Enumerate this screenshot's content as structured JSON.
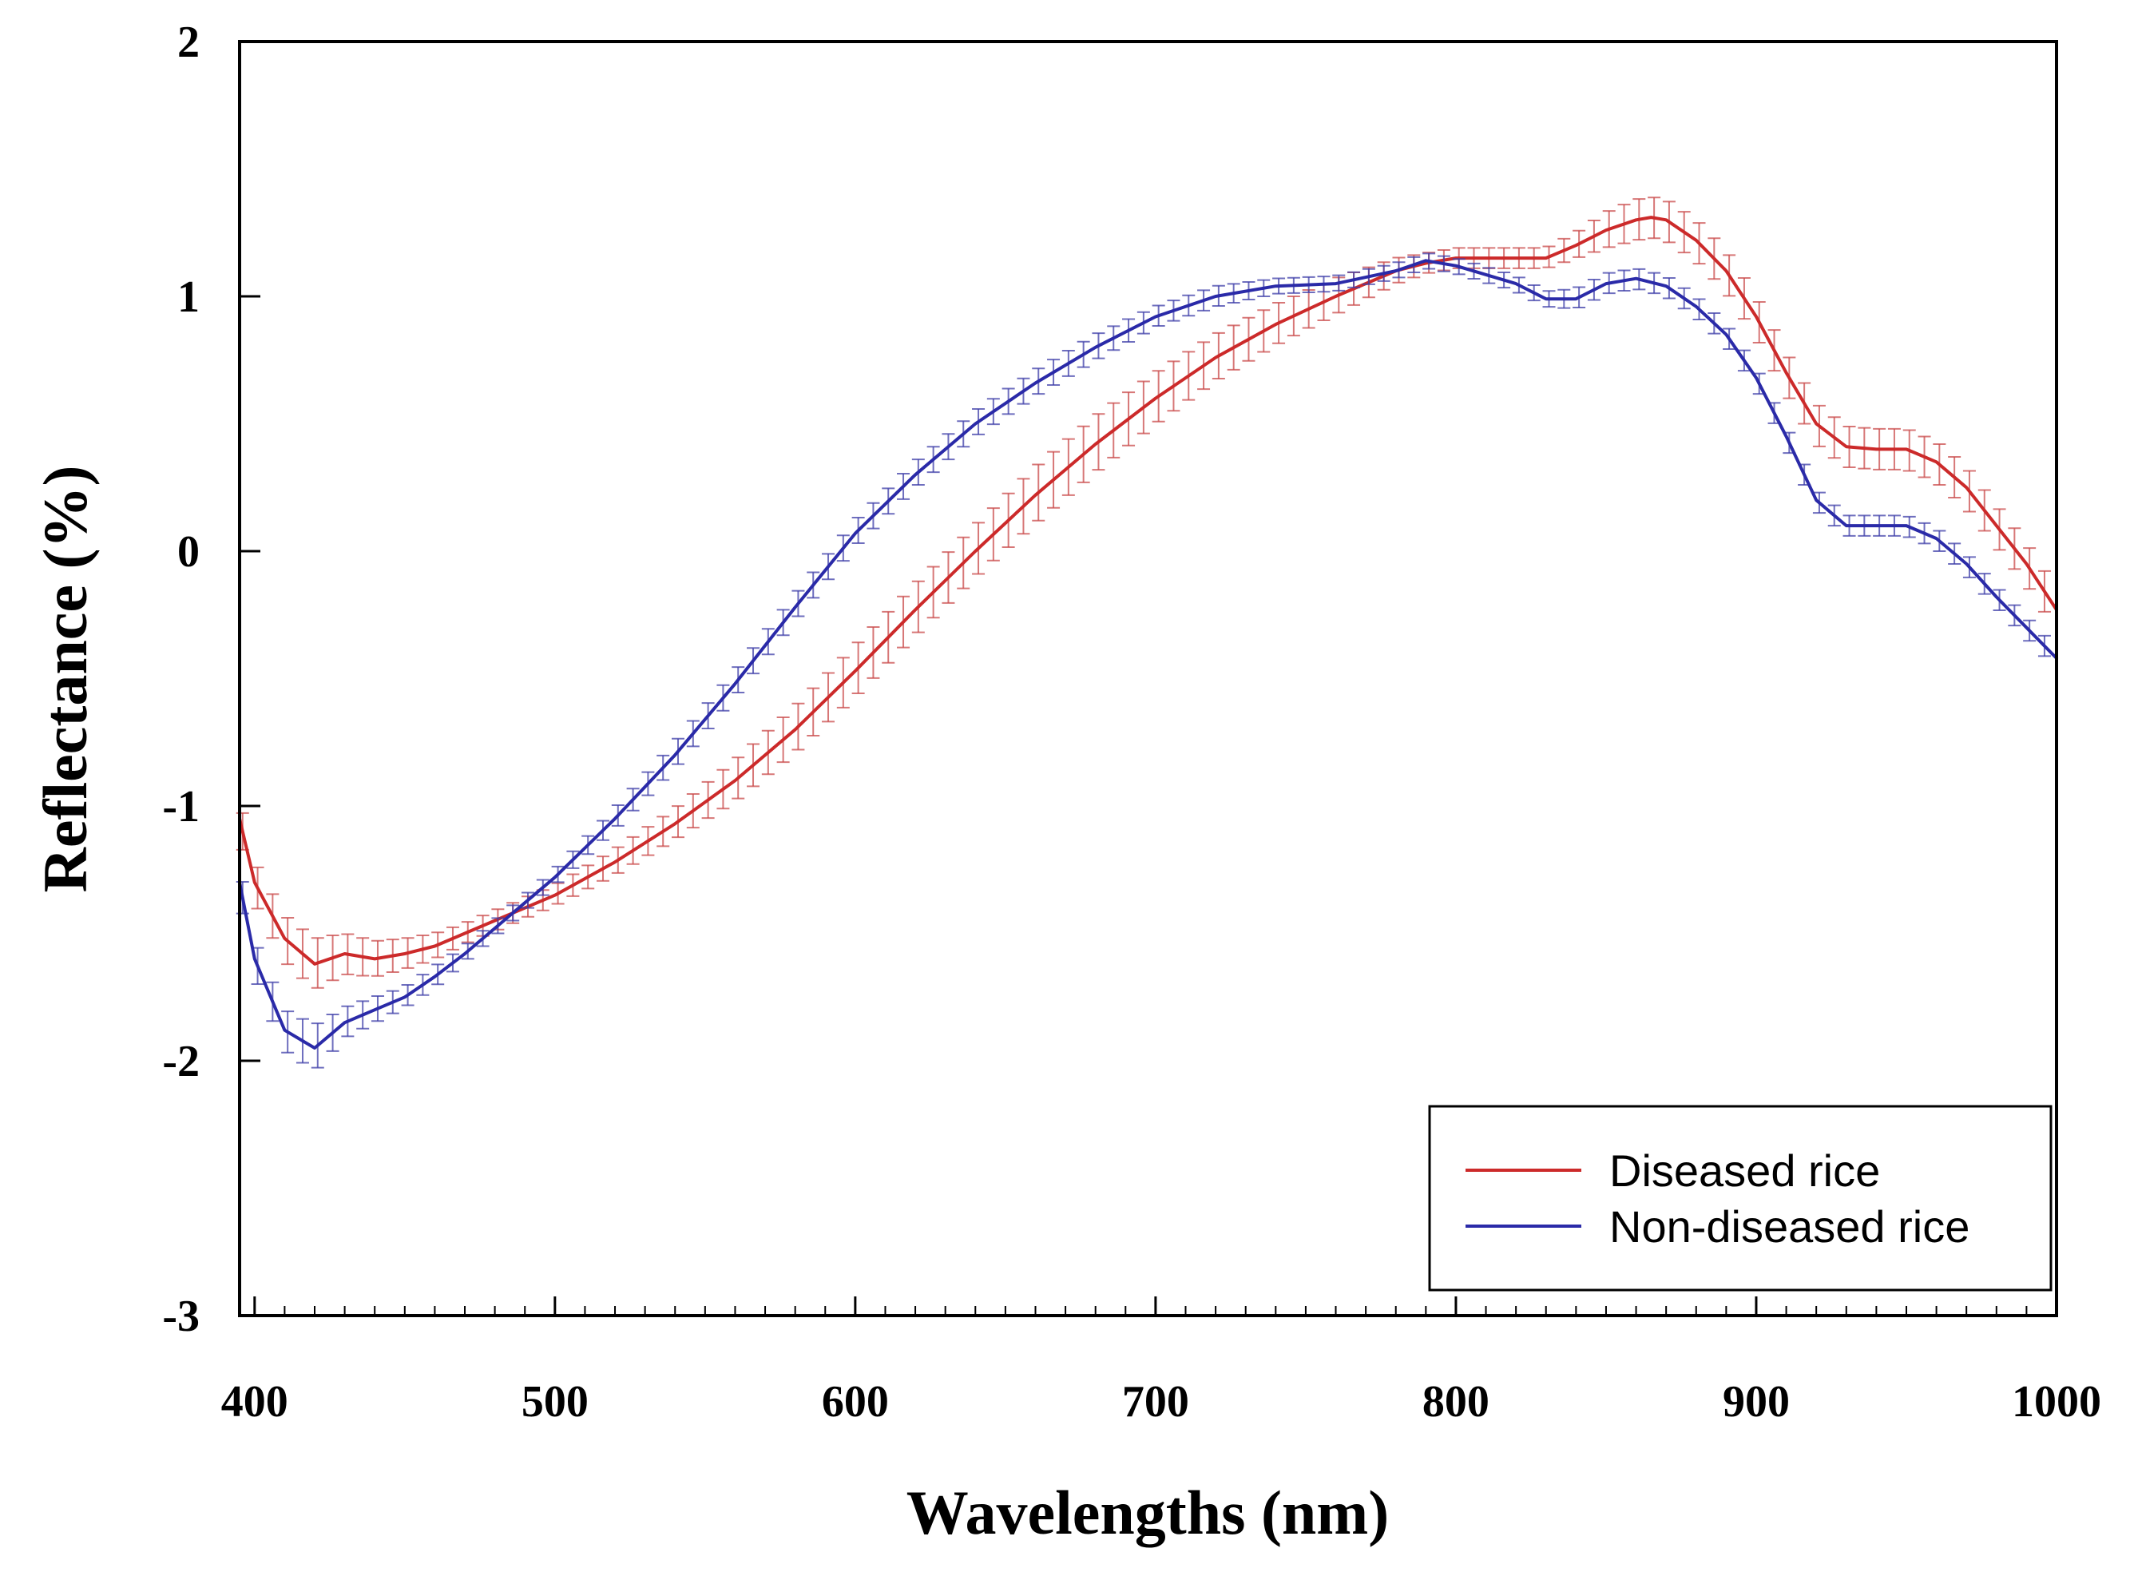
{
  "chart_data": {
    "type": "line",
    "title": "",
    "xlabel": "Wavelengths (nm)",
    "ylabel": "Reflectance (%)",
    "xlim": [
      395,
      1000
    ],
    "ylim": [
      -3,
      2
    ],
    "x_ticks": [
      "400",
      "500",
      "600",
      "700",
      "800",
      "900",
      "1000"
    ],
    "y_ticks": [
      "2",
      "1",
      "0",
      "-1",
      "-2",
      "-3"
    ],
    "grid": false,
    "legend_position": "bottom-right",
    "error_bars": true,
    "series": [
      {
        "name": "Diseased rice",
        "color": "#cc2a2a",
        "errorbar_color": "#c94a4a",
        "x": [
          395,
          400,
          410,
          420,
          430,
          440,
          450,
          460,
          470,
          480,
          490,
          500,
          520,
          540,
          560,
          580,
          600,
          620,
          640,
          660,
          680,
          700,
          720,
          740,
          760,
          780,
          790,
          800,
          820,
          830,
          840,
          850,
          860,
          865,
          870,
          880,
          890,
          900,
          910,
          920,
          930,
          940,
          950,
          960,
          970,
          980,
          990,
          1000
        ],
        "y": [
          -1.05,
          -1.3,
          -1.52,
          -1.62,
          -1.58,
          -1.6,
          -1.58,
          -1.55,
          -1.5,
          -1.45,
          -1.4,
          -1.35,
          -1.22,
          -1.07,
          -0.9,
          -0.7,
          -0.47,
          -0.23,
          0.0,
          0.22,
          0.42,
          0.6,
          0.76,
          0.89,
          1.0,
          1.1,
          1.13,
          1.15,
          1.15,
          1.15,
          1.2,
          1.26,
          1.3,
          1.31,
          1.3,
          1.22,
          1.1,
          0.92,
          0.7,
          0.5,
          0.41,
          0.4,
          0.4,
          0.35,
          0.25,
          0.1,
          -0.05,
          -0.23
        ],
        "error": [
          0.07,
          0.08,
          0.09,
          0.1,
          0.08,
          0.07,
          0.06,
          0.05,
          0.04,
          0.04,
          0.04,
          0.04,
          0.05,
          0.06,
          0.08,
          0.09,
          0.1,
          0.1,
          0.1,
          0.11,
          0.11,
          0.1,
          0.09,
          0.08,
          0.07,
          0.05,
          0.04,
          0.04,
          0.04,
          0.04,
          0.05,
          0.07,
          0.08,
          0.08,
          0.08,
          0.08,
          0.08,
          0.08,
          0.08,
          0.08,
          0.08,
          0.08,
          0.08,
          0.08,
          0.08,
          0.08,
          0.08,
          0.08
        ]
      },
      {
        "name": "Non-diseased rice",
        "color": "#2a2aa8",
        "errorbar_color": "#3d3da8",
        "x": [
          395,
          400,
          410,
          420,
          430,
          440,
          450,
          460,
          470,
          480,
          490,
          500,
          520,
          540,
          560,
          580,
          600,
          620,
          640,
          660,
          680,
          700,
          720,
          740,
          760,
          780,
          790,
          800,
          820,
          830,
          840,
          850,
          860,
          870,
          880,
          890,
          900,
          910,
          920,
          930,
          940,
          950,
          960,
          970,
          980,
          990,
          1000
        ],
        "y": [
          -1.3,
          -1.6,
          -1.88,
          -1.95,
          -1.85,
          -1.8,
          -1.75,
          -1.67,
          -1.58,
          -1.48,
          -1.38,
          -1.28,
          -1.05,
          -0.8,
          -0.52,
          -0.22,
          0.07,
          0.3,
          0.5,
          0.66,
          0.8,
          0.92,
          1.0,
          1.04,
          1.05,
          1.1,
          1.14,
          1.12,
          1.05,
          0.99,
          0.99,
          1.05,
          1.07,
          1.04,
          0.96,
          0.85,
          0.68,
          0.45,
          0.2,
          0.1,
          0.1,
          0.1,
          0.05,
          -0.05,
          -0.18,
          -0.3,
          -0.42
        ],
        "error": [
          0.06,
          0.07,
          0.08,
          0.09,
          0.06,
          0.05,
          0.04,
          0.04,
          0.03,
          0.03,
          0.03,
          0.03,
          0.04,
          0.05,
          0.05,
          0.05,
          0.05,
          0.05,
          0.05,
          0.05,
          0.05,
          0.04,
          0.04,
          0.03,
          0.03,
          0.03,
          0.03,
          0.03,
          0.03,
          0.03,
          0.04,
          0.04,
          0.04,
          0.04,
          0.04,
          0.04,
          0.04,
          0.04,
          0.04,
          0.04,
          0.04,
          0.04,
          0.04,
          0.04,
          0.04,
          0.04,
          0.04
        ]
      }
    ]
  }
}
